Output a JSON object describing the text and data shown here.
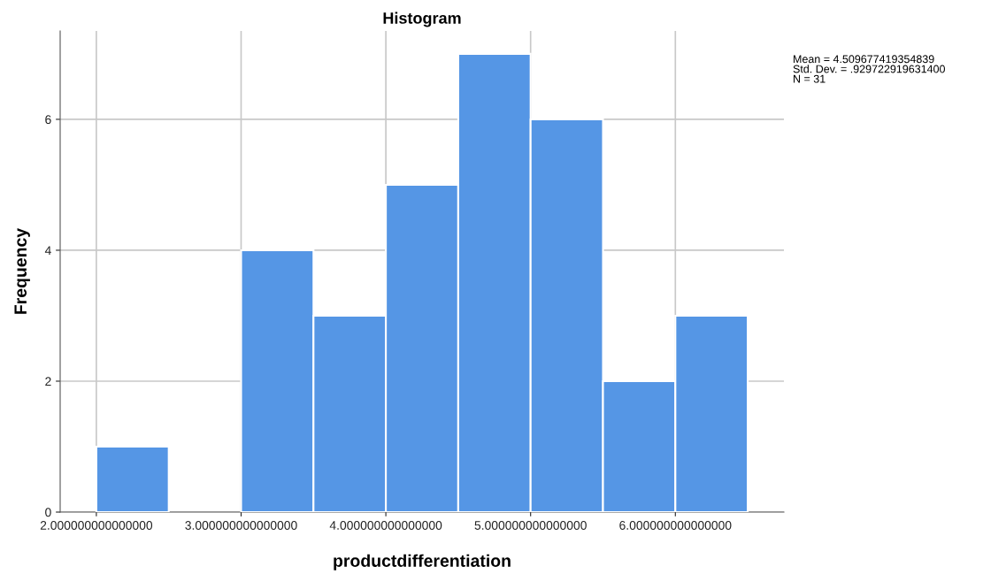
{
  "chart_data": {
    "type": "histogram",
    "title": "Histogram",
    "xlabel": "productdifferentiation",
    "ylabel": "Frequency",
    "bins": [
      2.0,
      2.5,
      3.0,
      3.5,
      4.0,
      4.5,
      5.0,
      5.5,
      6.0,
      6.5
    ],
    "values": [
      1,
      0,
      4,
      3,
      5,
      7,
      6,
      2,
      3
    ],
    "color": "#5596e5",
    "xlim": [
      1.75,
      6.75
    ],
    "xticks": [
      {
        "value": 2,
        "label": "2.000000000000000"
      },
      {
        "value": 3,
        "label": "3.000000000000000"
      },
      {
        "value": 4,
        "label": "4.000000000000000"
      },
      {
        "value": 5,
        "label": "5.000000000000000"
      },
      {
        "value": 6,
        "label": "6.000000000000000"
      }
    ],
    "ylim": [
      0,
      7.35
    ],
    "yticks": [
      0,
      2,
      4,
      6
    ],
    "grid": true,
    "legend": false,
    "annotations": [
      "Mean = 4.509677419354839",
      "Std. Dev. = .929722919631400",
      "N = 31"
    ]
  }
}
